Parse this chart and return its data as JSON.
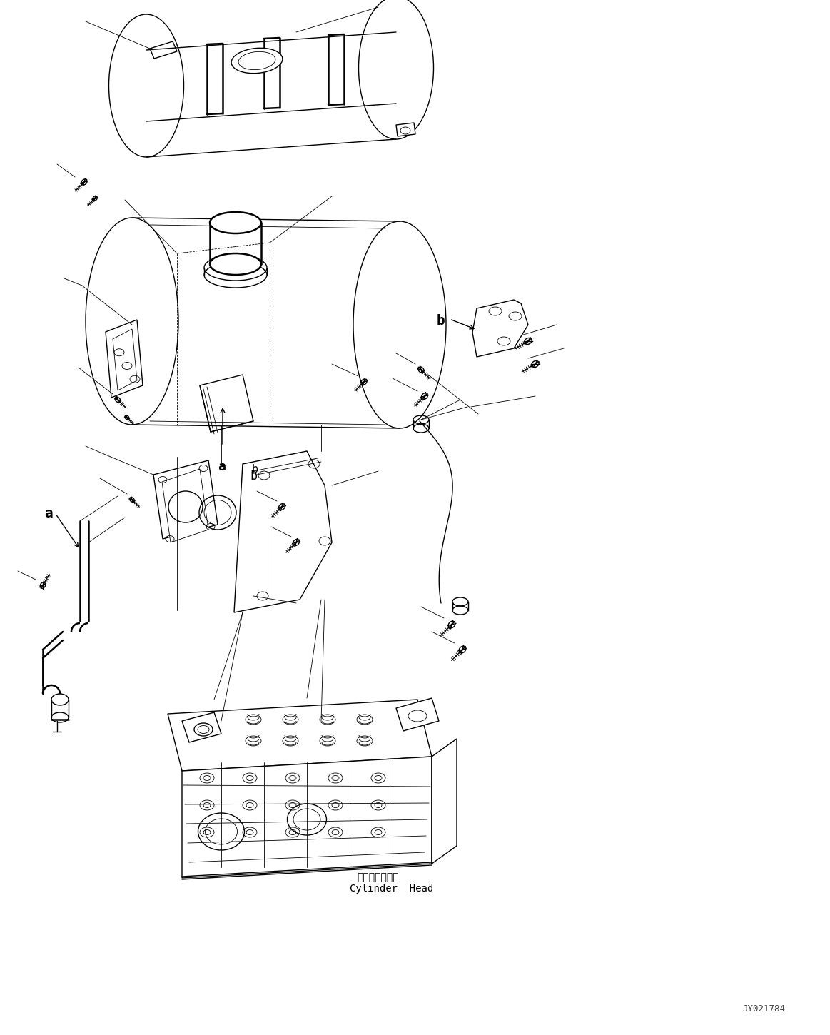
{
  "background_color": "#ffffff",
  "fig_width": 11.63,
  "fig_height": 14.5,
  "dpi": 100,
  "watermark": "JY021784",
  "label_a": "a",
  "label_b": "b",
  "cylinder_head_jp": "シリンダヘッド",
  "cylinder_head_en": "Cylinder  Head",
  "line_color": "#000000",
  "lw": 1.0,
  "tlw": 0.6,
  "thw": 1.8
}
